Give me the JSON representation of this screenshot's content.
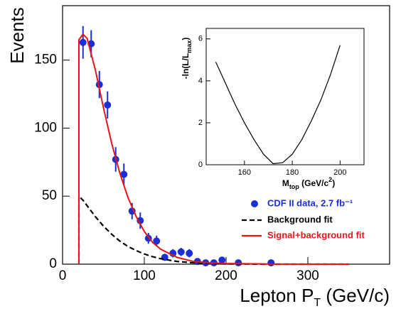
{
  "chart_data": [
    {
      "type": "errorbar",
      "y_label": "Events",
      "x_label": [
        "Lepton  P",
        "T",
        "  (GeV/c)"
      ],
      "xlim": [
        0,
        400
      ],
      "xticks": [
        0,
        100,
        200,
        300
      ],
      "ylim": [
        0,
        190
      ],
      "yticks": [
        0,
        50,
        100,
        150
      ],
      "series": [
        {
          "name": "CDF II data,  2.7 fb⁻¹",
          "color": "#1a2fd6",
          "kind": "points",
          "x": [
            25,
            35,
            45,
            55,
            65,
            75,
            85,
            95,
            105,
            115,
            125,
            135,
            145,
            155,
            165,
            175,
            185,
            195,
            215,
            255
          ],
          "values": [
            163,
            162,
            132,
            117,
            77,
            66,
            39,
            32,
            19,
            17,
            5,
            8,
            9,
            8,
            2,
            1,
            1,
            3,
            1,
            1
          ],
          "errors": [
            12,
            10,
            10,
            10,
            9,
            8,
            6,
            6,
            4,
            4,
            2,
            3,
            3,
            3,
            1.5,
            1,
            1,
            1.5,
            1,
            1
          ]
        },
        {
          "name": "Background  fit",
          "color": "#000000",
          "kind": "dashed",
          "x": [
            20,
            20,
            25,
            30,
            40,
            50,
            60,
            70,
            80,
            90,
            100,
            110,
            120,
            140,
            160,
            180,
            200,
            250,
            300,
            350
          ],
          "values": [
            0,
            50,
            47,
            43,
            35,
            28,
            22,
            17,
            13,
            10,
            7.5,
            5.5,
            4,
            2,
            1,
            0.5,
            0.2,
            0,
            0,
            0
          ]
        },
        {
          "name": "Signal+background  fit",
          "color": "#e8141b",
          "kind": "solid",
          "x": [
            20,
            20,
            25,
            30,
            40,
            50,
            60,
            70,
            80,
            90,
            100,
            110,
            120,
            140,
            160,
            180,
            200,
            250,
            300,
            350
          ],
          "values": [
            0,
            165,
            169,
            166,
            143,
            115,
            89,
            67,
            49,
            35,
            24,
            16,
            11,
            5,
            2,
            1,
            0.5,
            0.1,
            0,
            0
          ]
        }
      ]
    },
    {
      "type": "line",
      "y_label": [
        "-ln(L/L",
        "max",
        ")"
      ],
      "x_label": [
        "M",
        "top",
        " (GeV/c",
        "2",
        ")"
      ],
      "xlim": [
        144,
        210
      ],
      "xticks": [
        160,
        180,
        200
      ],
      "ylim": [
        0,
        6.5
      ],
      "yticks": [
        0,
        2,
        4,
        6
      ],
      "color": "#000000",
      "x": [
        148,
        152,
        156,
        160,
        164,
        168,
        172,
        176,
        180,
        184,
        188,
        192,
        196,
        200
      ],
      "values": [
        4.9,
        3.9,
        2.9,
        2.0,
        1.2,
        0.5,
        0.05,
        0.1,
        0.5,
        1.2,
        2.1,
        3.1,
        4.3,
        5.7
      ]
    }
  ]
}
